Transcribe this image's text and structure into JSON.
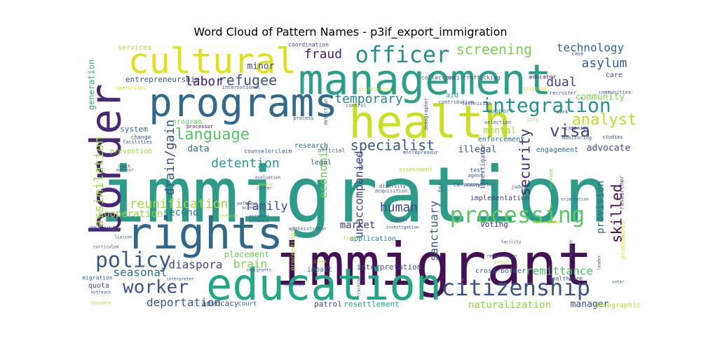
{
  "chart_data": {
    "type": "wordcloud",
    "title": "Word Cloud of Pattern Names - p3if_export_immigration",
    "words": [
      {
        "text": "immigration",
        "weight": 1.0,
        "color": "#2c9c88"
      },
      {
        "text": "immigrant",
        "weight": 0.93,
        "color": "#440f54"
      },
      {
        "text": "management",
        "weight": 0.8,
        "color": "#2b9f87"
      },
      {
        "text": "health",
        "weight": 0.76,
        "color": "#c8e020"
      },
      {
        "text": "border",
        "weight": 0.74,
        "color": "#482777"
      },
      {
        "text": "education",
        "weight": 0.72,
        "color": "#22a884"
      },
      {
        "text": "rights",
        "weight": 0.7,
        "color": "#30678d"
      },
      {
        "text": "programs",
        "weight": 0.66,
        "color": "#306a8e"
      },
      {
        "text": "cultural",
        "weight": 0.6,
        "color": "#dde318"
      },
      {
        "text": "processing",
        "weight": 0.42,
        "color": "#5cc863"
      },
      {
        "text": "citizenship",
        "weight": 0.42,
        "color": "#3b528b"
      },
      {
        "text": "officer",
        "weight": 0.38,
        "color": "#21908d"
      },
      {
        "text": "integration",
        "weight": 0.36,
        "color": "#1f978b"
      },
      {
        "text": "policy",
        "weight": 0.35,
        "color": "#38598c"
      },
      {
        "text": "worker",
        "weight": 0.32,
        "color": "#3b528b"
      },
      {
        "text": "visa",
        "weight": 0.32,
        "color": "#414487"
      },
      {
        "text": "language",
        "weight": 0.3,
        "color": "#52c569"
      },
      {
        "text": "screening",
        "weight": 0.26,
        "color": "#7ad151"
      },
      {
        "text": "assimilation",
        "weight": 0.26,
        "color": "#9bd93c"
      },
      {
        "text": "analyst",
        "weight": 0.26,
        "color": "#bddf26"
      },
      {
        "text": "specialist",
        "weight": 0.24,
        "color": "#38598c"
      },
      {
        "text": "human",
        "weight": 0.24,
        "color": "#3e4989"
      },
      {
        "text": "drain/gain",
        "weight": 0.24,
        "color": "#3b528b"
      },
      {
        "text": "skilled",
        "weight": 0.24,
        "color": "#440154"
      },
      {
        "text": "security",
        "weight": 0.24,
        "color": "#482878"
      },
      {
        "text": "refugee",
        "weight": 0.2,
        "color": "#3b528b"
      },
      {
        "text": "asylum",
        "weight": 0.2,
        "color": "#34618d"
      },
      {
        "text": "technology",
        "weight": 0.2,
        "color": "#31688e"
      },
      {
        "text": "labor",
        "weight": 0.2,
        "color": "#471365"
      },
      {
        "text": "temporary",
        "weight": 0.2,
        "color": "#24878e"
      },
      {
        "text": "detention",
        "weight": 0.2,
        "color": "#1f9e89"
      },
      {
        "text": "fraud",
        "weight": 0.2,
        "color": "#482071"
      },
      {
        "text": "dual",
        "weight": 0.2,
        "color": "#414487"
      },
      {
        "text": "reunification",
        "weight": 0.2,
        "color": "#a2da37"
      },
      {
        "text": "family",
        "weight": 0.2,
        "color": "#3b528b"
      },
      {
        "text": "sanctuary",
        "weight": 0.2,
        "color": "#355f8d"
      },
      {
        "text": "unaccompanied",
        "weight": 0.2,
        "color": "#3e4989"
      },
      {
        "text": "economic",
        "weight": 0.2,
        "color": "#6ece58"
      },
      {
        "text": "seasonal",
        "weight": 0.2,
        "color": "#2c728e"
      },
      {
        "text": "deportation",
        "weight": 0.2,
        "color": "#39568c"
      },
      {
        "text": "remittance",
        "weight": 0.2,
        "color": "#4ac16d"
      },
      {
        "text": "naturalization",
        "weight": 0.2,
        "color": "#90d743"
      },
      {
        "text": "diaspora",
        "weight": 0.2,
        "color": "#414487"
      },
      {
        "text": "brain",
        "weight": 0.2,
        "color": "#7ad151"
      },
      {
        "text": "cooperation",
        "weight": 0.2,
        "color": "#8ed645"
      },
      {
        "text": "market",
        "weight": 0.2,
        "color": "#453781"
      },
      {
        "text": "provision",
        "weight": 0.2,
        "color": "#31688e"
      },
      {
        "text": "community",
        "weight": 0.16,
        "color": "#7fd34e"
      },
      {
        "text": "minor",
        "weight": 0.16,
        "color": "#404688"
      },
      {
        "text": "generation",
        "weight": 0.16,
        "color": "#35b779"
      },
      {
        "text": "advocate",
        "weight": 0.14,
        "color": "#3e4989"
      },
      {
        "text": "illegal",
        "weight": 0.16,
        "color": "#3b528b"
      },
      {
        "text": "mental",
        "weight": 0.16,
        "color": "#a8db34"
      },
      {
        "text": "data",
        "weight": 0.16,
        "color": "#2d718e"
      },
      {
        "text": "second",
        "weight": 0.16,
        "color": "#297b8e"
      },
      {
        "text": "manager",
        "weight": 0.16,
        "color": "#3e4989"
      },
      {
        "text": "placement",
        "weight": 0.16,
        "color": "#6ece58"
      },
      {
        "text": "advocacy",
        "weight": 0.14,
        "color": "#3b528b"
      },
      {
        "text": "patrol",
        "weight": 0.12,
        "color": "#414487"
      },
      {
        "text": "resettlement",
        "weight": 0.12,
        "color": "#20a386"
      },
      {
        "text": "entrepreneurship",
        "weight": 0.12,
        "color": "#3b528b"
      },
      {
        "text": "program",
        "weight": 0.12,
        "color": "#5ec962"
      },
      {
        "text": "system",
        "weight": 0.12,
        "color": "#2e6e8e"
      },
      {
        "text": "prevention",
        "weight": 0.12,
        "color": "#9bd93c"
      },
      {
        "text": "enforcement",
        "weight": 0.12,
        "color": "#2c738e"
      },
      {
        "text": "engagement",
        "weight": 0.12,
        "color": "#306a8e"
      },
      {
        "text": "implementation",
        "weight": 0.12,
        "color": "#433e85"
      },
      {
        "text": "application",
        "weight": 0.12,
        "color": "#26828e"
      },
      {
        "text": "voting",
        "weight": 0.12,
        "color": "#481f70"
      },
      {
        "text": "interpretation",
        "weight": 0.12,
        "color": "#3b528b"
      },
      {
        "text": "cross-border",
        "weight": 0.12,
        "color": "#31688e"
      },
      {
        "text": "impact",
        "weight": 0.12,
        "color": "#2a778e"
      },
      {
        "text": "services",
        "weight": 0.1,
        "color": "#b5de2b"
      },
      {
        "text": "demographic",
        "weight": 0.1,
        "color": "#b5de2b"
      },
      {
        "text": "quota",
        "weight": 0.1,
        "color": "#404688"
      },
      {
        "text": "care",
        "weight": 0.1,
        "color": "#3e4989"
      },
      {
        "text": "aid",
        "weight": 0.1,
        "color": "#22a884"
      },
      {
        "text": "research",
        "weight": 0.1,
        "color": "#2d708e"
      },
      {
        "text": "legal",
        "weight": 0.1,
        "color": "#3b528b"
      },
      {
        "text": "court",
        "weight": 0.1,
        "color": "#31688e"
      },
      {
        "text": "analysis",
        "weight": 0.09,
        "color": "#453781"
      },
      {
        "text": "support",
        "weight": 0.09,
        "color": "#25858e"
      },
      {
        "text": "investigator",
        "weight": 0.08,
        "color": "#3e4989"
      },
      {
        "text": "procedures",
        "weight": 0.09,
        "color": "#dde318"
      },
      {
        "text": "proceedings",
        "weight": 0.09,
        "color": "#b5de2b"
      },
      {
        "text": "migration",
        "weight": 0.09,
        "color": "#2c728e"
      },
      {
        "text": "researcher",
        "weight": 0.08,
        "color": "#453781"
      },
      {
        "text": "healthcare",
        "weight": 0.08,
        "color": "#3b528b"
      },
      {
        "text": "anti-trafficking",
        "weight": 0.08,
        "color": "#3b528b"
      },
      {
        "text": "coordination",
        "weight": 0.07,
        "color": "#443a83"
      },
      {
        "text": "collection",
        "weight": 0.06,
        "color": "#3b528b"
      },
      {
        "text": "educator",
        "weight": 0.06,
        "color": "#471063"
      },
      {
        "text": "case",
        "weight": 0.07,
        "color": "#3e4989"
      },
      {
        "text": "operations",
        "weight": 0.05,
        "color": "#d8e219"
      },
      {
        "text": "international",
        "weight": 0.06,
        "color": "#3b528b"
      },
      {
        "text": "trafficking",
        "weight": 0.06,
        "color": "#b5de2b"
      },
      {
        "text": "training",
        "weight": 0.06,
        "color": "#dde318"
      },
      {
        "text": "recruiter",
        "weight": 0.06,
        "color": "#3b528b"
      },
      {
        "text": "communities",
        "weight": 0.05,
        "color": "#3b528b"
      },
      {
        "text": "control",
        "weight": 0.06,
        "color": "#31688e"
      },
      {
        "text": "contribution",
        "weight": 0.06,
        "color": "#3b528b"
      },
      {
        "text": "technician",
        "weight": 0.06,
        "color": "#3e4989"
      },
      {
        "text": "work",
        "weight": 0.06,
        "color": "#3b528b"
      },
      {
        "text": "city",
        "weight": 0.06,
        "color": "#7ad151"
      },
      {
        "text": "selection",
        "weight": 0.05,
        "color": "#3b528b"
      },
      {
        "text": "campaign",
        "weight": 0.06,
        "color": "#3e4989"
      },
      {
        "text": "monitoring",
        "weight": 0.06,
        "color": "#3b528b"
      },
      {
        "text": "studies",
        "weight": 0.05,
        "color": "#3b528b"
      },
      {
        "text": "change",
        "weight": 0.05,
        "color": "#3b528b"
      },
      {
        "text": "facilities",
        "weight": 0.05,
        "color": "#3b528b"
      },
      {
        "text": "processor",
        "weight": 0.07,
        "color": "#440154"
      },
      {
        "text": "process",
        "weight": 0.06,
        "color": "#3b528b"
      },
      {
        "text": "detection",
        "weight": 0.05,
        "color": "#3e4989"
      },
      {
        "text": "demographer",
        "weight": 0.06,
        "color": "#3b528b"
      },
      {
        "text": "counselor",
        "weight": 0.06,
        "color": "#3b528b"
      },
      {
        "text": "claim",
        "weight": 0.06,
        "color": "#3b528b"
      },
      {
        "text": "official",
        "weight": 0.07,
        "color": "#3b528b"
      },
      {
        "text": "entrepreneur",
        "weight": 0.07,
        "color": "#3b528b"
      },
      {
        "text": "quotas",
        "weight": 0.07,
        "color": "#3b528b"
      },
      {
        "text": "assessment",
        "weight": 0.05,
        "color": "#b5de2b"
      },
      {
        "text": "diversity",
        "weight": 0.06,
        "color": "#3b528b"
      },
      {
        "text": "acquisition",
        "weight": 0.07,
        "color": "#3b528b"
      },
      {
        "text": "test",
        "weight": 0.06,
        "color": "#3b528b"
      },
      {
        "text": "agent",
        "weight": 0.05,
        "color": "#3b528b"
      },
      {
        "text": "ceremony",
        "weight": 0.07,
        "color": "#3b528b"
      },
      {
        "text": "judge",
        "weight": 0.06,
        "color": "#3b528b"
      },
      {
        "text": "coach",
        "weight": 0.06,
        "color": "#3b528b"
      },
      {
        "text": "advisor",
        "weight": 0.06,
        "color": "#3b528b"
      },
      {
        "text": "evaluation",
        "weight": 0.05,
        "color": "#3b528b"
      },
      {
        "text": "center",
        "weight": 0.05,
        "color": "#3b528b"
      },
      {
        "text": "mentor",
        "weight": 0.05,
        "color": "#b5de2b"
      },
      {
        "text": "lawyer",
        "weight": 0.05,
        "color": "#3b528b"
      },
      {
        "text": "for",
        "weight": 0.05,
        "color": "#3b528b"
      },
      {
        "text": "caseworker",
        "weight": 0.06,
        "color": "#3b528b"
      },
      {
        "text": "service",
        "weight": 0.07,
        "color": "#7ad151"
      },
      {
        "text": "orientation",
        "weight": 0.06,
        "color": "#3b528b"
      },
      {
        "text": "development",
        "weight": 0.06,
        "color": "#b5de2b"
      },
      {
        "text": "pathways",
        "weight": 0.05,
        "color": "#3b528b"
      },
      {
        "text": "access",
        "weight": 0.05,
        "color": "#3b528b"
      },
      {
        "text": "cohesion",
        "weight": 0.05,
        "color": "#b5de2b"
      },
      {
        "text": "screener",
        "weight": 0.05,
        "color": "#3b528b"
      },
      {
        "text": "database",
        "weight": 0.05,
        "color": "#3b528b"
      },
      {
        "text": "flows",
        "weight": 0.05,
        "color": "#b5de2b"
      },
      {
        "text": "investigation",
        "weight": 0.05,
        "color": "#3b528b"
      },
      {
        "text": "administrator",
        "weight": 0.05,
        "color": "#3b528b"
      },
      {
        "text": "maker",
        "weight": 0.05,
        "color": "#3b528b"
      },
      {
        "text": "liaison",
        "weight": 0.06,
        "color": "#3b528b"
      },
      {
        "text": "curriculum",
        "weight": 0.05,
        "color": "#3b528b"
      },
      {
        "text": "immigrants",
        "weight": 0.05,
        "color": "#3b528b"
      },
      {
        "text": "facility",
        "weight": 0.05,
        "color": "#3b528b"
      },
      {
        "text": "registration",
        "weight": 0.05,
        "color": "#3b528b"
      },
      {
        "text": "social",
        "weight": 0.05,
        "color": "#b5de2b"
      },
      {
        "text": "migrant",
        "weight": 0.05,
        "color": "#3b528b"
      },
      {
        "text": "leader",
        "weight": 0.05,
        "color": "#3b528b"
      },
      {
        "text": "voter",
        "weight": 0.05,
        "color": "#3b528b"
      },
      {
        "text": "interpreter",
        "weight": 0.05,
        "color": "#3b528b"
      },
      {
        "text": "outreach",
        "weight": 0.05,
        "color": "#3b528b"
      },
      {
        "text": "issuance",
        "weight": 0.05,
        "color": "#b5de2b"
      },
      {
        "text": "national",
        "weight": 0.05,
        "color": "#3b528b"
      },
      {
        "text": "tracking",
        "weight": 0.05,
        "color": "#3b528b"
      },
      {
        "text": "cities",
        "weight": 0.05,
        "color": "#b5de2b"
      },
      {
        "text": "provider",
        "weight": 0.05,
        "color": "#3b528b"
      },
      {
        "text": "construction",
        "weight": 0.05,
        "color": "#b5de2b"
      }
    ]
  }
}
